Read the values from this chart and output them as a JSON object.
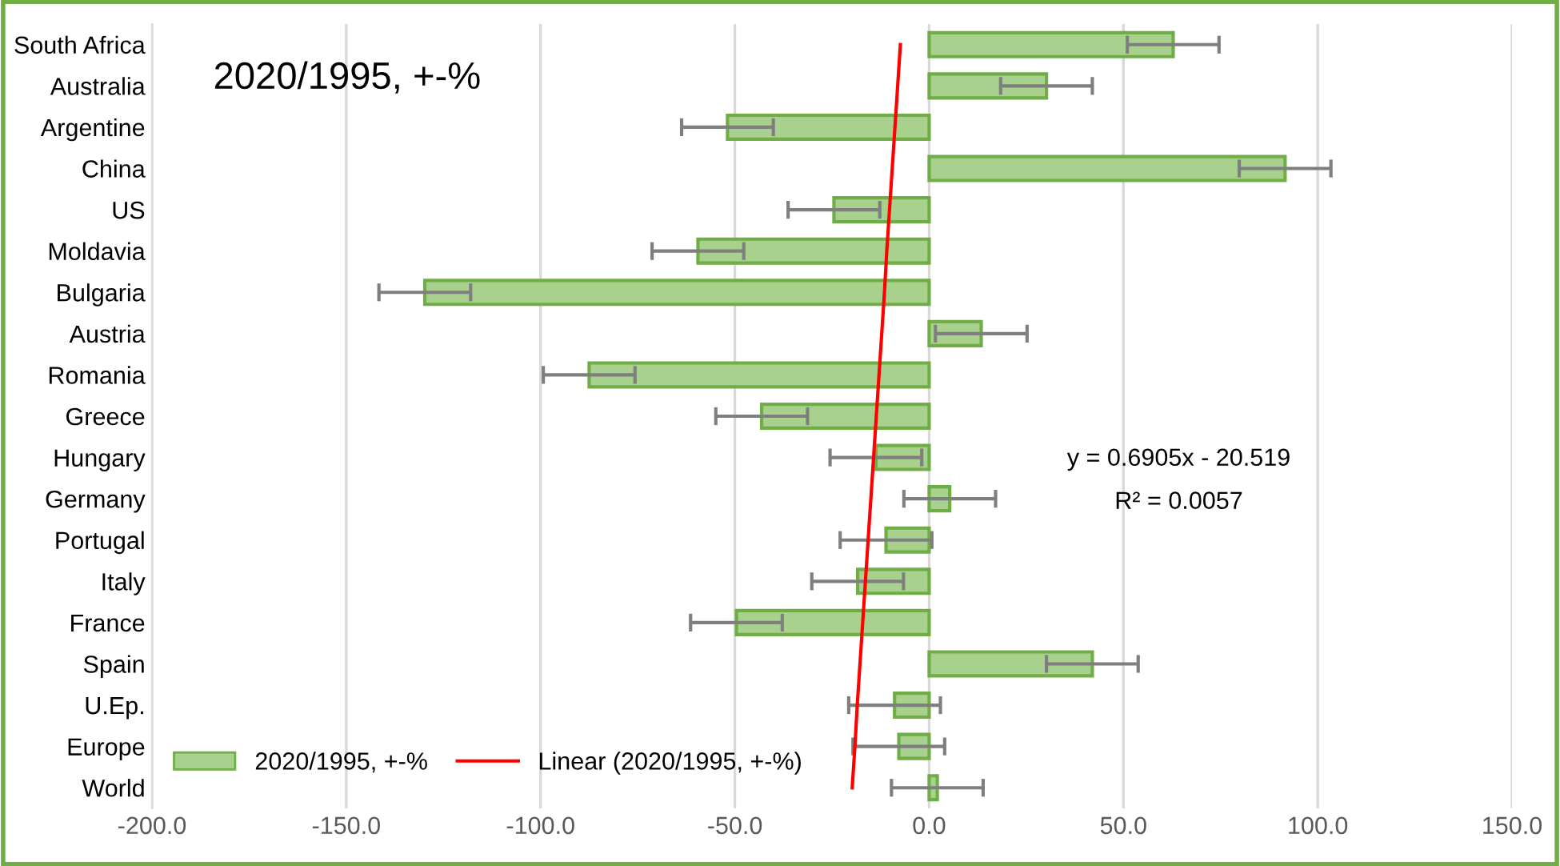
{
  "chart_data": {
    "type": "bar",
    "orientation": "horizontal",
    "title": "2020/1995, +-%",
    "categories": [
      "South Africa",
      "Australia",
      "Argentine",
      "China",
      "US",
      "Moldavia",
      "Bulgaria",
      "Austria",
      "Romania",
      "Greece",
      "Hungary",
      "Germany",
      "Portugal",
      "Italy",
      "France",
      "Spain",
      "U.Ep.",
      "Europe",
      "World"
    ],
    "series": [
      {
        "name": "2020/1995, +-%",
        "color": "#a9d18e",
        "values": [
          62.8,
          30.2,
          -51.9,
          91.6,
          -24.5,
          -59.5,
          -129.8,
          13.4,
          -87.5,
          -43.1,
          -13.7,
          5.3,
          -11.1,
          -18.4,
          -49.6,
          42.0,
          -8.9,
          -7.8,
          2.1
        ],
        "errors": [
          11.8,
          11.8,
          11.8,
          11.8,
          11.8,
          11.8,
          11.8,
          11.8,
          11.8,
          11.8,
          11.8,
          11.8,
          11.8,
          11.8,
          11.8,
          11.8,
          11.8,
          11.8,
          11.8
        ]
      },
      {
        "name": "Linear (2020/1995, +-%)",
        "type": "line",
        "color": "#ff0000",
        "values": [
          -7.4,
          -8.1,
          -8.8,
          -9.5,
          -10.2,
          -10.9,
          -11.5,
          -12.2,
          -12.9,
          -13.6,
          -14.3,
          -15.0,
          -15.7,
          -16.4,
          -17.1,
          -17.8,
          -18.5,
          -19.1,
          -19.8
        ]
      }
    ],
    "xlim": [
      -200,
      150
    ],
    "xticks": [
      {
        "value": -200,
        "label": "-200.0"
      },
      {
        "value": -150,
        "label": "-150.0"
      },
      {
        "value": -100,
        "label": "-100.0"
      },
      {
        "value": -50,
        "label": "-50.0"
      },
      {
        "value": 0,
        "label": "0.0"
      },
      {
        "value": 50,
        "label": "50.0"
      },
      {
        "value": 100,
        "label": "100.0"
      },
      {
        "value": 150,
        "label": "150.0"
      }
    ],
    "annotations": [
      "y = 0.6905x - 20.519",
      "R² = 0.0057"
    ],
    "grid": "x",
    "legend": "bottom left"
  }
}
